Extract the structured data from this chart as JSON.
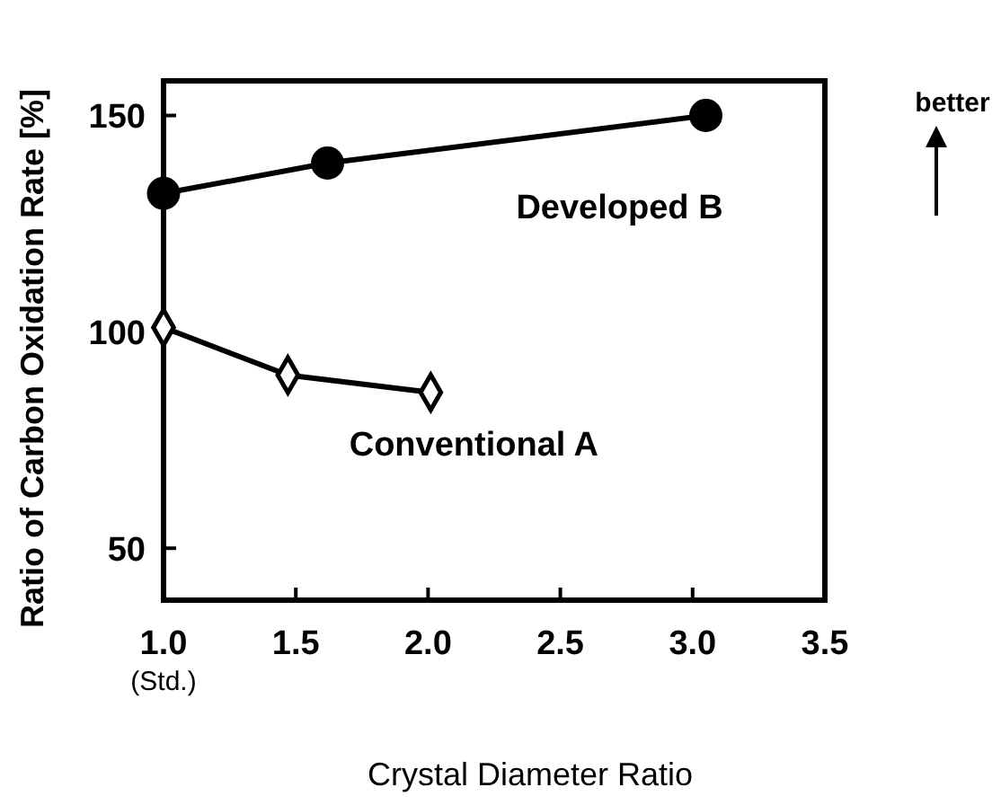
{
  "chart_data": {
    "type": "line",
    "xlabel": "Crystal Diameter Ratio",
    "ylabel": "Ratio of Carbon Oxidation Rate [%]",
    "xlim": [
      1,
      3.5
    ],
    "xticks": [
      {
        "value": 1,
        "label": "1.0\n(Std.)"
      },
      1.5,
      {
        "value": 2,
        "label": "2.0"
      },
      2.5,
      {
        "value": 3,
        "label": "3.0"
      },
      3.5
    ],
    "ylim": [
      38,
      158
    ],
    "yticks": [
      50,
      100,
      150
    ],
    "annotations": [
      "better"
    ],
    "series": [
      {
        "name": "Developed B",
        "color": "#000000",
        "marker": "circle",
        "x": [
          1.0,
          1.62,
          3.05
        ],
        "values": [
          132,
          139,
          150
        ]
      },
      {
        "name": "Conventional A",
        "color": "#000000",
        "marker": "diamond",
        "x": [
          1.0,
          1.47,
          2.01
        ],
        "values": [
          101,
          90,
          86
        ]
      }
    ]
  }
}
